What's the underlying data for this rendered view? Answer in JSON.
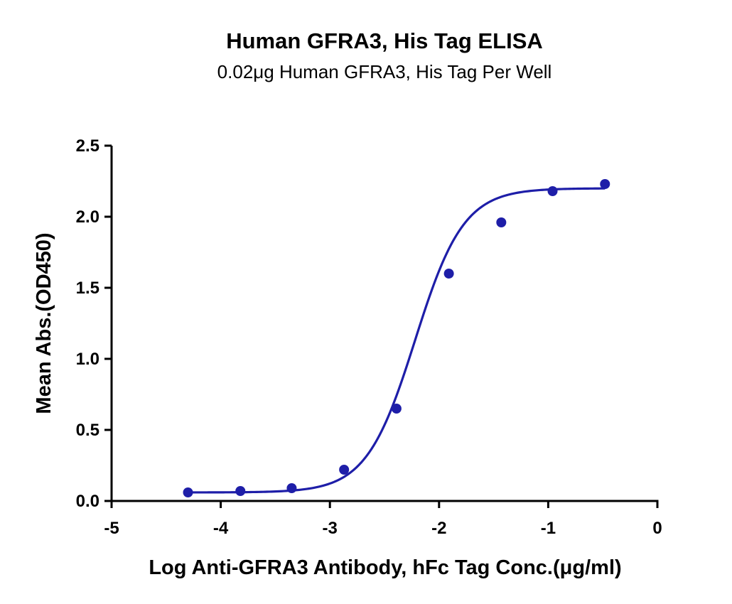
{
  "chart_data": {
    "type": "scatter",
    "title": "Human GFRA3, His Tag ELISA",
    "subtitle": "0.02μg Human GFRA3, His Tag Per Well",
    "xlabel": "Log Anti-GFRA3 Antibody, hFc Tag Conc.(μg/ml)",
    "ylabel": "Mean Abs.(OD450)",
    "xlim": [
      -5,
      0
    ],
    "ylim": [
      0,
      2.5
    ],
    "xticks": [
      -5,
      -4,
      -3,
      -2,
      -1,
      0
    ],
    "xtick_labels": [
      "-5",
      "-4",
      "-3",
      "-2",
      "-1",
      "0"
    ],
    "yticks": [
      0,
      0.5,
      1.0,
      1.5,
      2.0,
      2.5
    ],
    "ytick_labels": [
      "0.0",
      "0.5",
      "1.0",
      "1.5",
      "2.0",
      "2.5"
    ],
    "grid": false,
    "series": [
      {
        "x": [
          -4.3,
          -3.82,
          -3.35,
          -2.87,
          -2.39,
          -1.91,
          -1.43,
          -0.96,
          -0.48
        ],
        "y": [
          0.06,
          0.07,
          0.09,
          0.22,
          0.65,
          1.6,
          1.96,
          2.18,
          2.23
        ],
        "fit": {
          "model": "4PL",
          "bottom": 0.06,
          "top": 2.2,
          "log_ec50": -2.22,
          "hill": 1.95,
          "x_range": [
            -4.3,
            -0.48
          ]
        }
      }
    ],
    "colors": {
      "series": "#1e1ea8"
    }
  }
}
